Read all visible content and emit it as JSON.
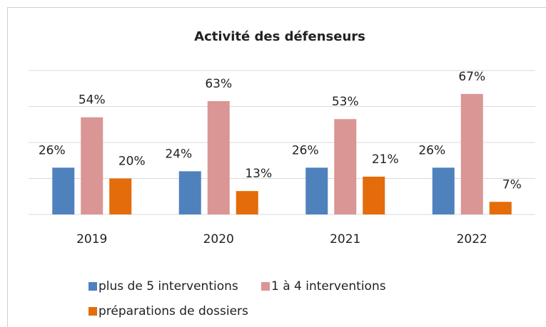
{
  "chart_data": {
    "type": "bar",
    "title": "Activité des défenseurs",
    "categories": [
      "2019",
      "2020",
      "2021",
      "2022"
    ],
    "series": [
      {
        "name": "plus de 5 interventions",
        "color": "#4f81bd",
        "values": [
          26,
          24,
          26,
          26
        ],
        "value_labels": [
          "26%",
          "24%",
          "26%",
          "26%"
        ]
      },
      {
        "name": "1 à 4 interventions",
        "color": "#d99694",
        "values": [
          54,
          63,
          53,
          67
        ],
        "value_labels": [
          "54%",
          "63%",
          "53%",
          "67%"
        ]
      },
      {
        "name": "préparations de dossiers",
        "color": "#e46c0a",
        "values": [
          20,
          13,
          21,
          7
        ],
        "value_labels": [
          "20%",
          "13%",
          "21%",
          "7%"
        ]
      }
    ],
    "ylim": [
      0,
      80
    ],
    "yticks": [
      0,
      20,
      40,
      60,
      80
    ],
    "grid": true
  }
}
